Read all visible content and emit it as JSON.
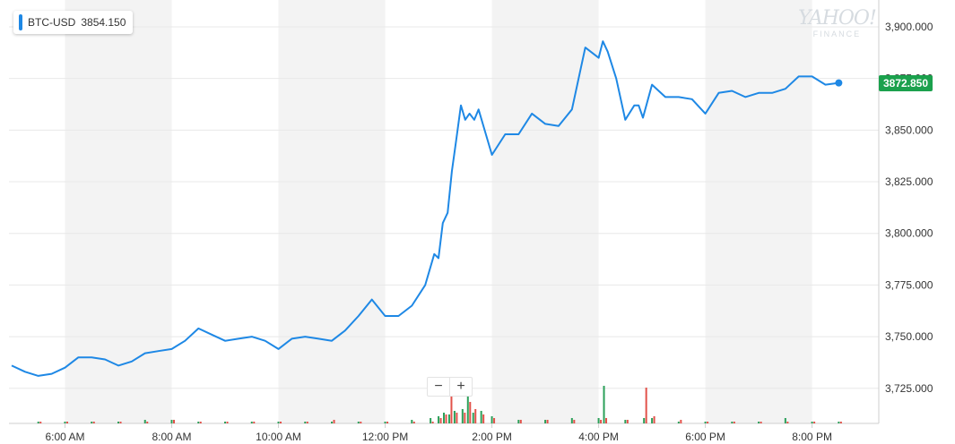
{
  "legend": {
    "symbol": "BTC-USD",
    "value": "3854.150"
  },
  "last_price": "3872.850",
  "watermark": {
    "brand": "YAHOO!",
    "sub": "FINANCE"
  },
  "zoom": {
    "minus": "−",
    "plus": "+"
  },
  "colors": {
    "line": "#1e88e5",
    "up_volume": "#2ca05a",
    "down_volume": "#e2524a",
    "last_tag": "#1ba14d",
    "band": "#f3f3f3"
  },
  "chart_data": {
    "type": "line",
    "series": [
      {
        "name": "BTC-USD",
        "x": [
          5.0,
          5.25,
          5.5,
          5.75,
          6.0,
          6.25,
          6.5,
          6.75,
          7.0,
          7.25,
          7.5,
          7.75,
          8.0,
          8.25,
          8.5,
          8.75,
          9.0,
          9.25,
          9.5,
          9.75,
          10.0,
          10.25,
          10.5,
          10.75,
          11.0,
          11.25,
          11.5,
          11.75,
          12.0,
          12.25,
          12.5,
          12.75,
          12.92,
          13.0,
          13.08,
          13.17,
          13.25,
          13.33,
          13.42,
          13.5,
          13.58,
          13.67,
          13.75,
          14.0,
          14.25,
          14.5,
          14.75,
          15.0,
          15.25,
          15.5,
          15.75,
          16.0,
          16.08,
          16.17,
          16.33,
          16.5,
          16.67,
          16.75,
          16.83,
          17.0,
          17.25,
          17.5,
          17.75,
          18.0,
          18.25,
          18.5,
          18.75,
          19.0,
          19.25,
          19.5,
          19.75,
          20.0,
          20.25,
          20.5
        ],
        "values": [
          3736,
          3733,
          3731,
          3732,
          3735,
          3740,
          3740,
          3739,
          3736,
          3738,
          3742,
          3743,
          3744,
          3748,
          3754,
          3751,
          3748,
          3749,
          3750,
          3748,
          3744,
          3749,
          3750,
          3749,
          3748,
          3753,
          3760,
          3768,
          3760,
          3760,
          3765,
          3775,
          3790,
          3788,
          3805,
          3810,
          3830,
          3845,
          3862,
          3855,
          3858,
          3855,
          3860,
          3838,
          3848,
          3848,
          3858,
          3853,
          3852,
          3860,
          3890,
          3885,
          3893,
          3888,
          3875,
          3855,
          3862,
          3862,
          3856,
          3872,
          3866,
          3866,
          3865,
          3858,
          3868,
          3869,
          3866,
          3868,
          3868,
          3870,
          3876,
          3876,
          3872,
          3872.85
        ]
      }
    ],
    "volume": [
      {
        "x": 5.5,
        "up": 1,
        "down": 1
      },
      {
        "x": 6.0,
        "up": 1,
        "down": 1
      },
      {
        "x": 6.5,
        "up": 1,
        "down": 1
      },
      {
        "x": 7.0,
        "up": 1,
        "down": 1
      },
      {
        "x": 7.5,
        "up": 2,
        "down": 1
      },
      {
        "x": 8.0,
        "up": 2,
        "down": 2
      },
      {
        "x": 8.5,
        "up": 1,
        "down": 1
      },
      {
        "x": 9.0,
        "up": 1,
        "down": 1
      },
      {
        "x": 9.5,
        "up": 1,
        "down": 1
      },
      {
        "x": 10.0,
        "up": 1,
        "down": 1
      },
      {
        "x": 10.5,
        "up": 1,
        "down": 1
      },
      {
        "x": 11.0,
        "up": 1,
        "down": 2
      },
      {
        "x": 11.5,
        "up": 1,
        "down": 1
      },
      {
        "x": 12.0,
        "up": 1,
        "down": 1
      },
      {
        "x": 12.5,
        "up": 2,
        "down": 1
      },
      {
        "x": 12.85,
        "up": 3,
        "down": 1
      },
      {
        "x": 13.0,
        "up": 4,
        "down": 3
      },
      {
        "x": 13.1,
        "up": 6,
        "down": 5
      },
      {
        "x": 13.2,
        "up": 5,
        "down": 18
      },
      {
        "x": 13.3,
        "up": 7,
        "down": 6
      },
      {
        "x": 13.45,
        "up": 8,
        "down": 6
      },
      {
        "x": 13.55,
        "up": 18,
        "down": 12
      },
      {
        "x": 13.65,
        "up": 6,
        "down": 8
      },
      {
        "x": 13.8,
        "up": 7,
        "down": 5
      },
      {
        "x": 14.0,
        "up": 4,
        "down": 3
      },
      {
        "x": 14.5,
        "up": 2,
        "down": 2
      },
      {
        "x": 15.0,
        "up": 2,
        "down": 2
      },
      {
        "x": 15.5,
        "up": 3,
        "down": 2
      },
      {
        "x": 16.0,
        "up": 3,
        "down": 2
      },
      {
        "x": 16.1,
        "up": 21,
        "down": 3
      },
      {
        "x": 16.5,
        "up": 2,
        "down": 2
      },
      {
        "x": 16.85,
        "up": 3,
        "down": 20
      },
      {
        "x": 17.0,
        "up": 3,
        "down": 4
      },
      {
        "x": 17.5,
        "up": 1,
        "down": 2
      },
      {
        "x": 18.0,
        "up": 1,
        "down": 1
      },
      {
        "x": 18.5,
        "up": 1,
        "down": 1
      },
      {
        "x": 19.0,
        "up": 1,
        "down": 1
      },
      {
        "x": 19.5,
        "up": 3,
        "down": 1
      },
      {
        "x": 20.0,
        "up": 1,
        "down": 1
      },
      {
        "x": 20.5,
        "up": 1,
        "down": 1
      }
    ],
    "xticks": [
      {
        "v": 6,
        "label": "6:00 AM"
      },
      {
        "v": 8,
        "label": "8:00 AM"
      },
      {
        "v": 10,
        "label": "10:00 AM"
      },
      {
        "v": 12,
        "label": "12:00 PM"
      },
      {
        "v": 14,
        "label": "2:00 PM"
      },
      {
        "v": 16,
        "label": "4:00 PM"
      },
      {
        "v": 18,
        "label": "6:00 PM"
      },
      {
        "v": 20,
        "label": "8:00 PM"
      }
    ],
    "yticks": [
      3725,
      3750,
      3775,
      3800,
      3825,
      3850,
      3875,
      3900
    ],
    "ytick_labels": [
      "3,725.000",
      "3,750.000",
      "3,775.000",
      "3,800.000",
      "3,825.000",
      "3,850.000",
      "3,875.000",
      "3,900.000"
    ],
    "xlim": [
      4.95,
      21.25
    ],
    "ylim": [
      3708,
      3913
    ],
    "grid": true
  }
}
